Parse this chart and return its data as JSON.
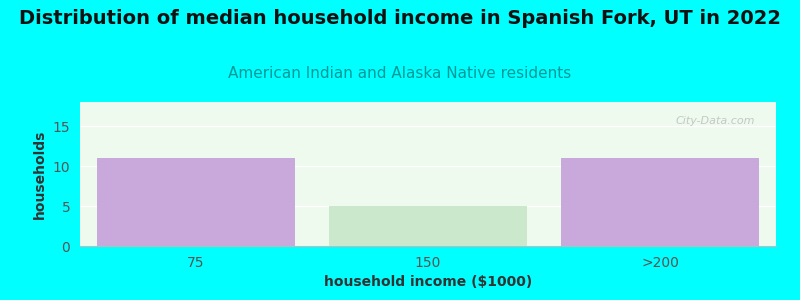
{
  "title": "Distribution of median household income in Spanish Fork, UT in 2022",
  "subtitle": "American Indian and Alaska Native residents",
  "xlabel": "household income ($1000)",
  "ylabel": "households",
  "categories": [
    "75",
    "150",
    ">200"
  ],
  "values": [
    11,
    5,
    11
  ],
  "bar_colors": [
    "#c9a8dc",
    "#cce8cc",
    "#c9a8dc"
  ],
  "background_color": "#00FFFF",
  "plot_bg_color": "#edfaed",
  "ylim": [
    0,
    18
  ],
  "yticks": [
    0,
    5,
    10,
    15
  ],
  "title_fontsize": 14,
  "subtitle_fontsize": 11,
  "subtitle_color": "#009999",
  "axis_label_fontsize": 10,
  "tick_color": "#555555",
  "watermark": "City-Data.com",
  "grid_color": "#ffffff",
  "spine_color": "#bbbbbb"
}
